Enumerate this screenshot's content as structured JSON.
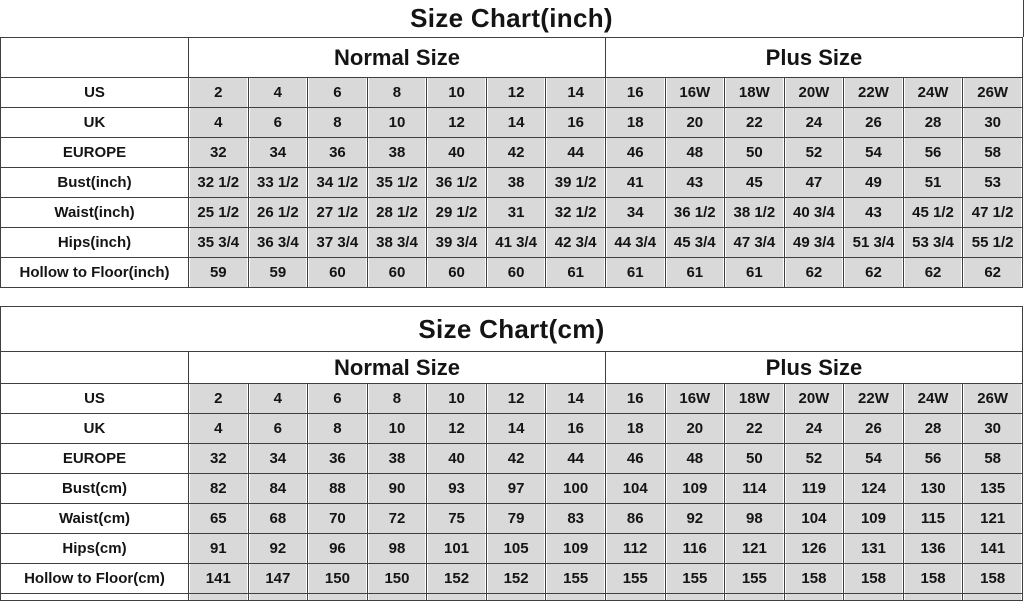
{
  "colors": {
    "page_bg": "#ffffff",
    "cell_bg": "#d9d9d9",
    "border": "#3f3f3f",
    "text": "#141414"
  },
  "chart_data": [
    {
      "type": "table",
      "title": "Size Chart(inch)",
      "group_headers": [
        "Normal Size",
        "Plus Size"
      ],
      "rows": [
        {
          "label": "US",
          "values": [
            "2",
            "4",
            "6",
            "8",
            "10",
            "12",
            "14",
            "16",
            "16W",
            "18W",
            "20W",
            "22W",
            "24W",
            "26W"
          ]
        },
        {
          "label": "UK",
          "values": [
            "4",
            "6",
            "8",
            "10",
            "12",
            "14",
            "16",
            "18",
            "20",
            "22",
            "24",
            "26",
            "28",
            "30"
          ]
        },
        {
          "label": "EUROPE",
          "values": [
            "32",
            "34",
            "36",
            "38",
            "40",
            "42",
            "44",
            "46",
            "48",
            "50",
            "52",
            "54",
            "56",
            "58"
          ]
        },
        {
          "label": "Bust(inch)",
          "values": [
            "32 1/2",
            "33 1/2",
            "34 1/2",
            "35 1/2",
            "36 1/2",
            "38",
            "39 1/2",
            "41",
            "43",
            "45",
            "47",
            "49",
            "51",
            "53"
          ]
        },
        {
          "label": "Waist(inch)",
          "values": [
            "25 1/2",
            "26 1/2",
            "27 1/2",
            "28 1/2",
            "29 1/2",
            "31",
            "32 1/2",
            "34",
            "36 1/2",
            "38 1/2",
            "40 3/4",
            "43",
            "45 1/2",
            "47 1/2"
          ]
        },
        {
          "label": "Hips(inch)",
          "values": [
            "35 3/4",
            "36 3/4",
            "37 3/4",
            "38 3/4",
            "39 3/4",
            "41 3/4",
            "42 3/4",
            "44 3/4",
            "45 3/4",
            "47 3/4",
            "49 3/4",
            "51 3/4",
            "53 3/4",
            "55 1/2"
          ]
        },
        {
          "label": "Hollow to Floor(inch)",
          "values": [
            "59",
            "59",
            "60",
            "60",
            "60",
            "60",
            "61",
            "61",
            "61",
            "61",
            "62",
            "62",
            "62",
            "62"
          ]
        }
      ]
    },
    {
      "type": "table",
      "title": "Size Chart(cm)",
      "group_headers": [
        "Normal Size",
        "Plus Size"
      ],
      "rows": [
        {
          "label": "US",
          "values": [
            "2",
            "4",
            "6",
            "8",
            "10",
            "12",
            "14",
            "16",
            "16W",
            "18W",
            "20W",
            "22W",
            "24W",
            "26W"
          ]
        },
        {
          "label": "UK",
          "values": [
            "4",
            "6",
            "8",
            "10",
            "12",
            "14",
            "16",
            "18",
            "20",
            "22",
            "24",
            "26",
            "28",
            "30"
          ]
        },
        {
          "label": "EUROPE",
          "values": [
            "32",
            "34",
            "36",
            "38",
            "40",
            "42",
            "44",
            "46",
            "48",
            "50",
            "52",
            "54",
            "56",
            "58"
          ]
        },
        {
          "label": "Bust(cm)",
          "values": [
            "82",
            "84",
            "88",
            "90",
            "93",
            "97",
            "100",
            "104",
            "109",
            "114",
            "119",
            "124",
            "130",
            "135"
          ]
        },
        {
          "label": "Waist(cm)",
          "values": [
            "65",
            "68",
            "70",
            "72",
            "75",
            "79",
            "83",
            "86",
            "92",
            "98",
            "104",
            "109",
            "115",
            "121"
          ]
        },
        {
          "label": "Hips(cm)",
          "values": [
            "91",
            "92",
            "96",
            "98",
            "101",
            "105",
            "109",
            "112",
            "116",
            "121",
            "126",
            "131",
            "136",
            "141"
          ]
        },
        {
          "label": "Hollow to Floor(cm)",
          "values": [
            "141",
            "147",
            "150",
            "150",
            "152",
            "152",
            "155",
            "155",
            "155",
            "155",
            "158",
            "158",
            "158",
            "158"
          ]
        }
      ]
    }
  ]
}
